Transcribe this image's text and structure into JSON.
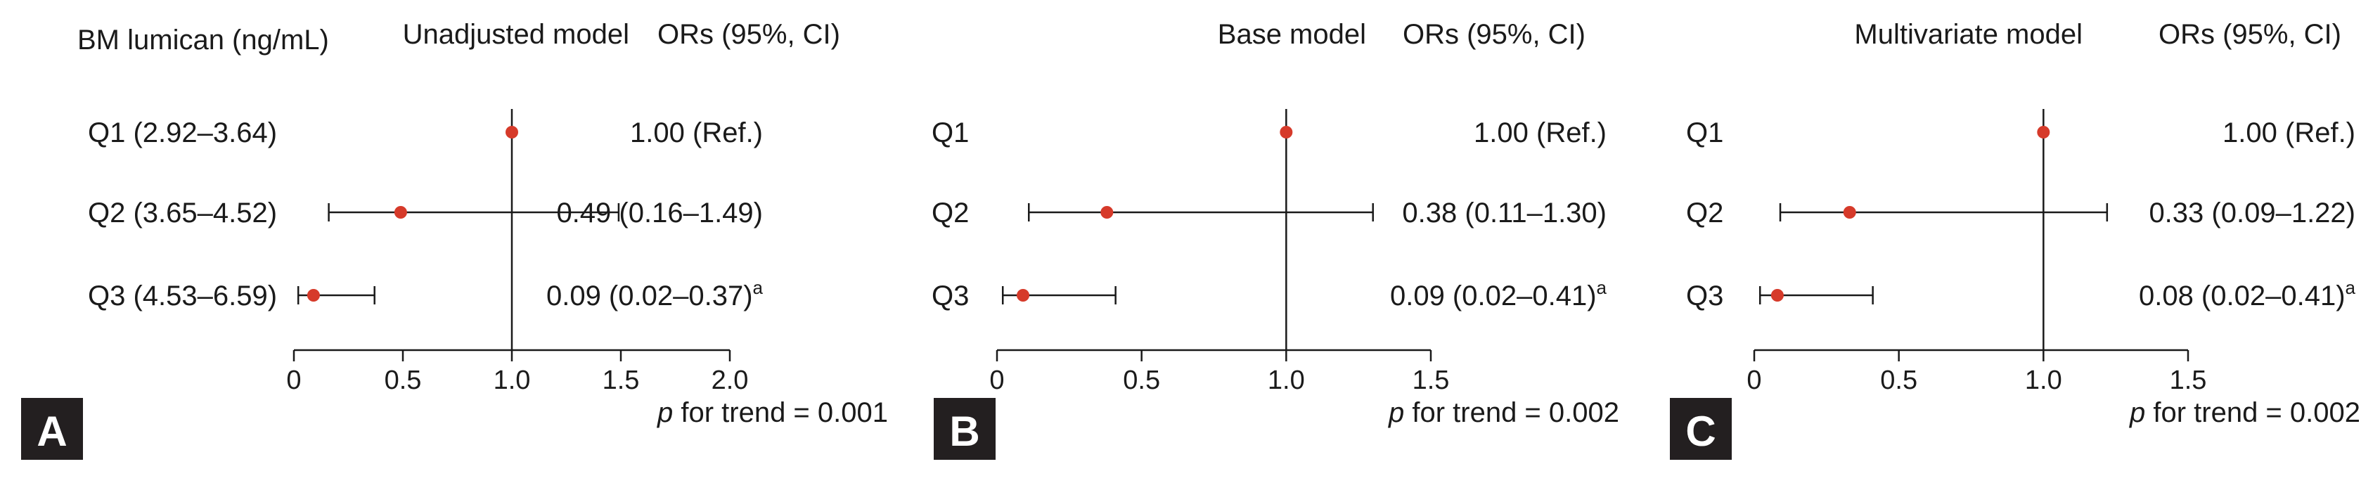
{
  "figure": {
    "row_header": "BM lumican (ng/mL)",
    "ors_header": "ORs (95%, CI)",
    "trend_prefix": "p",
    "colors": {
      "point": "#d63a2a",
      "line": "#1a1a1a",
      "badge_bg": "#231f20",
      "badge_text": "#ffffff"
    }
  },
  "chart_data": [
    {
      "type": "forest",
      "panel_label": "A",
      "title": "Unadjusted model",
      "row_labels": [
        "Q1 (2.92–3.64)",
        "Q2 (3.65–4.52)",
        "Q3 (4.53–6.59)"
      ],
      "estimates": [
        1.0,
        0.49,
        0.09
      ],
      "ci_low": [
        null,
        0.16,
        0.02
      ],
      "ci_high": [
        null,
        1.49,
        0.37
      ],
      "or_text": [
        "1.00 (Ref.)",
        "0.49 (0.16–1.49)",
        "0.09 (0.02–0.37)"
      ],
      "or_superscript": [
        "",
        "",
        "a"
      ],
      "xlim": [
        0,
        2.0
      ],
      "x_ticks": [
        0,
        0.5,
        1.0,
        1.5,
        2.0
      ],
      "x_tick_labels": [
        "0",
        "0.5",
        "1.0",
        "1.5",
        "2.0"
      ],
      "reference_line": 1.0,
      "trend_text": "for trend = 0.001"
    },
    {
      "type": "forest",
      "panel_label": "B",
      "title": "Base model",
      "row_labels": [
        "Q1",
        "Q2",
        "Q3"
      ],
      "estimates": [
        1.0,
        0.38,
        0.09
      ],
      "ci_low": [
        null,
        0.11,
        0.02
      ],
      "ci_high": [
        null,
        1.3,
        0.41
      ],
      "or_text": [
        "1.00 (Ref.)",
        "0.38 (0.11–1.30)",
        "0.09 (0.02–0.41)"
      ],
      "or_superscript": [
        "",
        "",
        "a"
      ],
      "xlim": [
        0,
        1.5
      ],
      "x_ticks": [
        0,
        0.5,
        1.0,
        1.5
      ],
      "x_tick_labels": [
        "0",
        "0.5",
        "1.0",
        "1.5"
      ],
      "reference_line": 1.0,
      "trend_text": "for trend = 0.002"
    },
    {
      "type": "forest",
      "panel_label": "C",
      "title": "Multivariate model",
      "row_labels": [
        "Q1",
        "Q2",
        "Q3"
      ],
      "estimates": [
        1.0,
        0.33,
        0.08
      ],
      "ci_low": [
        null,
        0.09,
        0.02
      ],
      "ci_high": [
        null,
        1.22,
        0.41
      ],
      "or_text": [
        "1.00 (Ref.)",
        "0.33 (0.09–1.22)",
        "0.08 (0.02–0.41)"
      ],
      "or_superscript": [
        "",
        "",
        "a"
      ],
      "xlim": [
        0,
        1.5
      ],
      "x_ticks": [
        0,
        0.5,
        1.0,
        1.5
      ],
      "x_tick_labels": [
        "0",
        "0.5",
        "1.0",
        "1.5"
      ],
      "reference_line": 1.0,
      "trend_text": "for trend = 0.002"
    }
  ]
}
